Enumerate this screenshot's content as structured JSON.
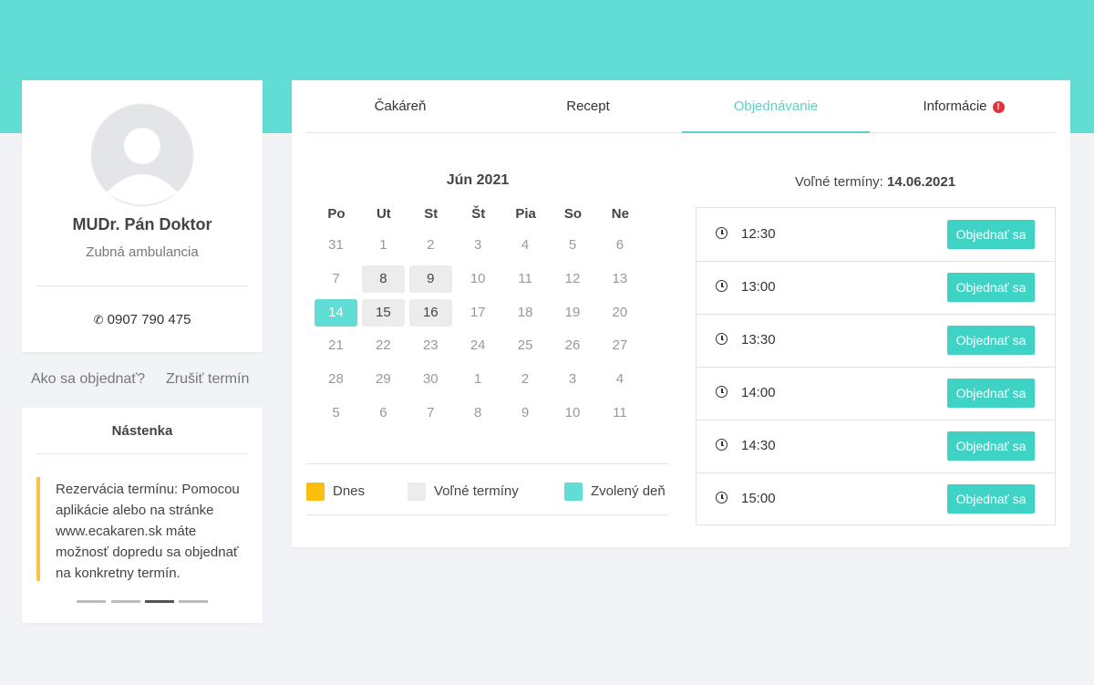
{
  "profile": {
    "name": "MUDr. Pán Doktor",
    "specialty": "Zubná ambulancia",
    "phone": "0907 790 475"
  },
  "links": [
    "Ako sa objednať?",
    "Zrušiť termín"
  ],
  "board": {
    "title": "Nástenka",
    "text": "Rezervácia termínu: Pomocou aplikácie alebo na stránke www.ecakaren.sk máte možnosť dopredu sa objednať na konkretny termín."
  },
  "tabs": [
    "Čakáreň",
    "Recept",
    "Objednávanie",
    "Informácie"
  ],
  "active_tab": 2,
  "calendar": {
    "month": "Jún 2021",
    "weekdays": [
      "Po",
      "Ut",
      "St",
      "Št",
      "Pia",
      "So",
      "Ne"
    ],
    "weeks": [
      [
        31,
        1,
        2,
        3,
        4,
        5,
        6
      ],
      [
        7,
        8,
        9,
        10,
        11,
        12,
        13
      ],
      [
        14,
        15,
        16,
        17,
        18,
        19,
        20
      ],
      [
        21,
        22,
        23,
        24,
        25,
        26,
        27
      ],
      [
        28,
        29,
        30,
        1,
        2,
        3,
        4
      ],
      [
        5,
        6,
        7,
        8,
        9,
        10,
        11
      ]
    ],
    "free_days": [
      8,
      9,
      15,
      16
    ],
    "selected_day": 14
  },
  "legend": [
    "Dnes",
    "Voľné termíny",
    "Zvolený deň"
  ],
  "slots": {
    "label": "Voľné termíny:",
    "date": "14.06.2021",
    "times": [
      "12:30",
      "13:00",
      "13:30",
      "14:00",
      "14:30",
      "15:00"
    ],
    "button": "Objednať sa"
  }
}
